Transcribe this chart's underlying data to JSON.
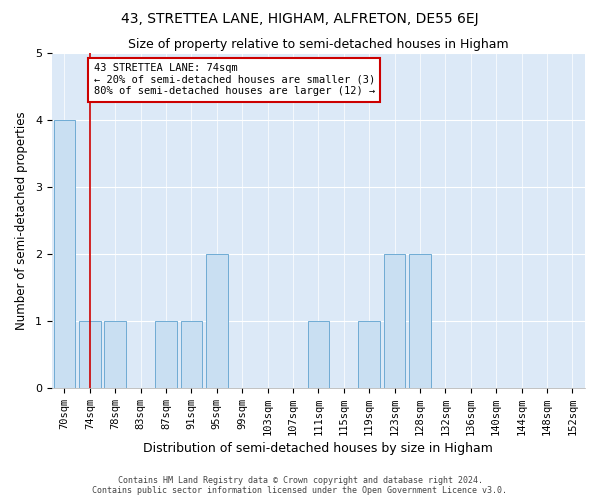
{
  "title": "43, STRETTEA LANE, HIGHAM, ALFRETON, DE55 6EJ",
  "subtitle": "Size of property relative to semi-detached houses in Higham",
  "xlabel": "Distribution of semi-detached houses by size in Higham",
  "ylabel": "Number of semi-detached properties",
  "footer_line1": "Contains HM Land Registry data © Crown copyright and database right 2024.",
  "footer_line2": "Contains public sector information licensed under the Open Government Licence v3.0.",
  "categories": [
    "70sqm",
    "74sqm",
    "78sqm",
    "83sqm",
    "87sqm",
    "91sqm",
    "95sqm",
    "99sqm",
    "103sqm",
    "107sqm",
    "111sqm",
    "115sqm",
    "119sqm",
    "123sqm",
    "128sqm",
    "132sqm",
    "136sqm",
    "140sqm",
    "144sqm",
    "148sqm",
    "152sqm"
  ],
  "values": [
    4,
    1,
    1,
    0,
    1,
    1,
    2,
    0,
    0,
    0,
    1,
    0,
    1,
    2,
    2,
    0,
    0,
    0,
    0,
    0,
    0
  ],
  "bar_color": "#c9dff2",
  "bar_edge_color": "#6fabd4",
  "red_line_index": 1,
  "red_line_color": "#cc0000",
  "annotation_text": "43 STRETTEA LANE: 74sqm\n← 20% of semi-detached houses are smaller (3)\n80% of semi-detached houses are larger (12) →",
  "annotation_box_color": "white",
  "annotation_box_edge": "#cc0000",
  "background_color": "#dce9f7",
  "ylim": [
    0,
    5
  ],
  "yticks": [
    0,
    1,
    2,
    3,
    4,
    5
  ],
  "title_fontsize": 10,
  "subtitle_fontsize": 9,
  "xlabel_fontsize": 9,
  "ylabel_fontsize": 8.5,
  "tick_fontsize": 7.5,
  "annotation_fontsize": 7.5,
  "footer_fontsize": 6
}
